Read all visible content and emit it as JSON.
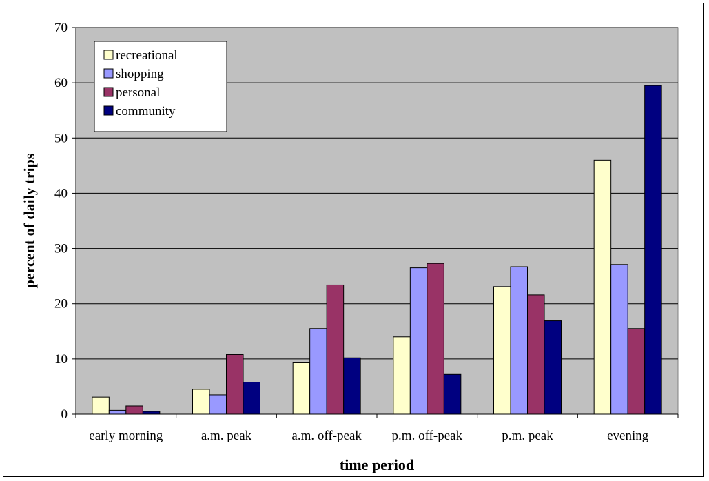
{
  "chart_data": {
    "type": "bar",
    "title": "",
    "xlabel": "time period",
    "ylabel": "percent of daily trips",
    "ylim": [
      0,
      70
    ],
    "yticks": [
      0,
      10,
      20,
      30,
      40,
      50,
      60,
      70
    ],
    "grid": true,
    "legend_position": "top-left",
    "categories": [
      "early morning",
      "a.m. peak",
      "a.m. off-peak",
      "p.m. off-peak",
      "p.m. peak",
      "evening"
    ],
    "series": [
      {
        "name": "recreational",
        "color": "#ffffcc",
        "values": [
          3.1,
          4.5,
          9.3,
          14.0,
          23.1,
          46.0
        ]
      },
      {
        "name": "shopping",
        "color": "#9999ff",
        "values": [
          0.7,
          3.5,
          15.5,
          26.5,
          26.7,
          27.1
        ]
      },
      {
        "name": "personal",
        "color": "#993366",
        "values": [
          1.5,
          10.8,
          23.4,
          27.3,
          21.6,
          15.5
        ]
      },
      {
        "name": "community",
        "color": "#000080",
        "values": [
          0.5,
          5.8,
          10.2,
          7.2,
          16.9,
          59.5
        ]
      }
    ],
    "plot_background": "#c0c0c0"
  }
}
